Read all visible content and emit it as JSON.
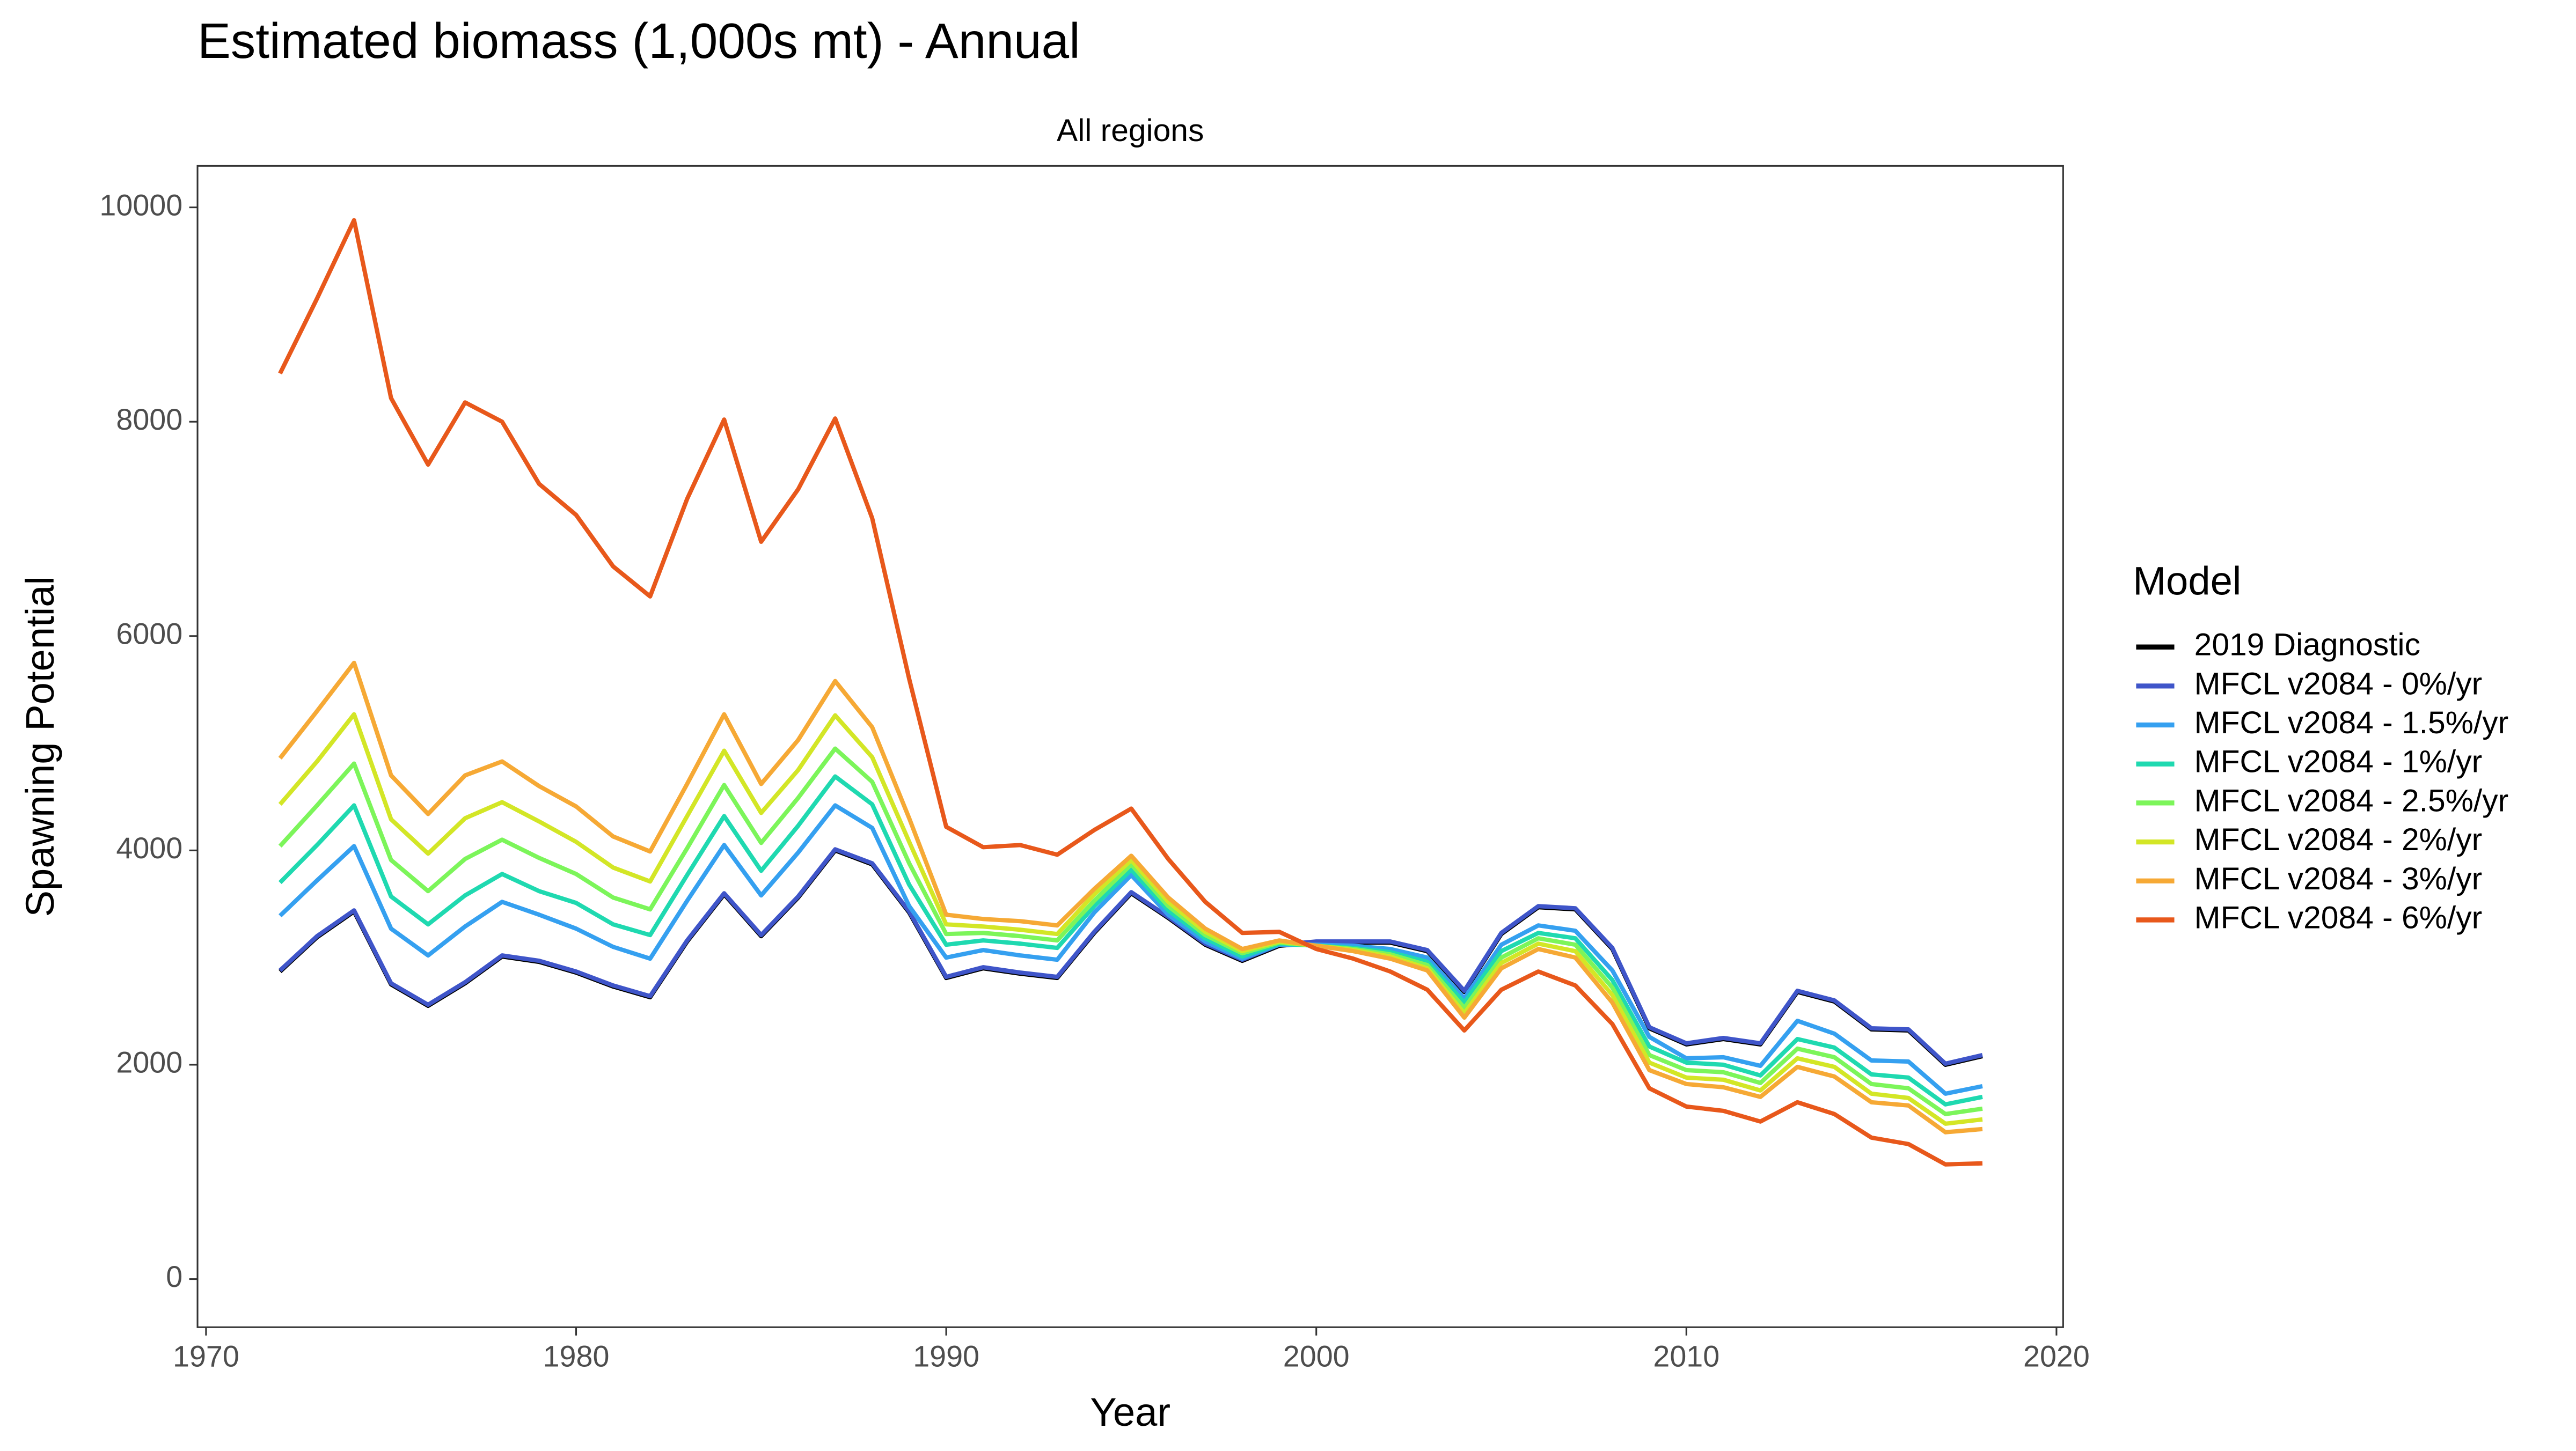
{
  "chart_data": {
    "type": "line",
    "title": "Estimated biomass (1,000s mt) - Annual",
    "subtitle": "All regions",
    "x_label": "Year",
    "y_label": "Spawning Potential",
    "legend_title": "Model",
    "legend": "right",
    "x": [
      1972,
      1973,
      1974,
      1975,
      1976,
      1977,
      1978,
      1979,
      1980,
      1981,
      1982,
      1983,
      1984,
      1985,
      1986,
      1987,
      1988,
      1989,
      1990,
      1991,
      1992,
      1993,
      1994,
      1995,
      1996,
      1997,
      1998,
      1999,
      2000,
      2001,
      2002,
      2003,
      2004,
      2005,
      2006,
      2007,
      2008,
      2009,
      2010,
      2011,
      2012,
      2013,
      2014,
      2015,
      2016,
      2017,
      2018
    ],
    "xlim": [
      1969.77,
      2020.18
    ],
    "xticks": [
      1970,
      1980,
      1990,
      2000,
      2010,
      2020
    ],
    "ylim": [
      -449,
      10387
    ],
    "yticks": [
      0,
      2000,
      4000,
      6000,
      8000,
      10000
    ],
    "series": [
      {
        "name": "2019 Diagnostic",
        "color": "#000000",
        "values": [
          2870,
          3190,
          3430,
          2750,
          2550,
          2760,
          3010,
          2960,
          2860,
          2730,
          2630,
          3150,
          3590,
          3200,
          3560,
          4000,
          3870,
          3420,
          2810,
          2900,
          2850,
          2810,
          3230,
          3600,
          3370,
          3120,
          2970,
          3110,
          3140,
          3140,
          3140,
          3060,
          2680,
          3220,
          3470,
          3450,
          3080,
          2340,
          2190,
          2240,
          2190,
          2680,
          2590,
          2330,
          2320,
          2000,
          2080
        ]
      },
      {
        "name": "MFCL v2084 - 0%/yr",
        "color": "#3f55c9",
        "values": [
          2880,
          3200,
          3440,
          2760,
          2560,
          2770,
          3020,
          2970,
          2870,
          2740,
          2640,
          3160,
          3600,
          3210,
          3570,
          4010,
          3880,
          3430,
          2820,
          2910,
          2860,
          2820,
          3240,
          3610,
          3380,
          3130,
          2980,
          3120,
          3150,
          3150,
          3150,
          3070,
          2690,
          3230,
          3480,
          3460,
          3090,
          2350,
          2200,
          2250,
          2200,
          2690,
          2600,
          2340,
          2330,
          2010,
          2090
        ]
      },
      {
        "name": "MFCL v2084 - 1.5%/yr",
        "color": "#35a0f0",
        "values": [
          3390,
          3720,
          4040,
          3270,
          3020,
          3290,
          3520,
          3400,
          3270,
          3100,
          2990,
          3530,
          4050,
          3580,
          3980,
          4420,
          4210,
          3480,
          3000,
          3070,
          3020,
          2980,
          3420,
          3770,
          3400,
          3150,
          2990,
          3120,
          3120,
          3110,
          3080,
          3000,
          2620,
          3120,
          3300,
          3250,
          2880,
          2260,
          2060,
          2070,
          1990,
          2410,
          2290,
          2040,
          2030,
          1730,
          1800
        ]
      },
      {
        "name": "MFCL v2084 - 1%/yr",
        "color": "#1fd9b0",
        "values": [
          3700,
          4050,
          4420,
          3570,
          3310,
          3580,
          3780,
          3620,
          3510,
          3310,
          3210,
          3770,
          4320,
          3810,
          4230,
          4690,
          4430,
          3680,
          3120,
          3160,
          3130,
          3090,
          3480,
          3820,
          3440,
          3180,
          3010,
          3130,
          3110,
          3090,
          3050,
          2960,
          2580,
          3060,
          3230,
          3180,
          2790,
          2170,
          2020,
          2000,
          1900,
          2240,
          2160,
          1910,
          1880,
          1630,
          1700
        ]
      },
      {
        "name": "MFCL v2084 - 2.5%/yr",
        "color": "#7cf55a",
        "values": [
          4040,
          4420,
          4810,
          3910,
          3620,
          3920,
          4100,
          3930,
          3780,
          3560,
          3450,
          4020,
          4610,
          4070,
          4490,
          4950,
          4640,
          3880,
          3220,
          3230,
          3200,
          3160,
          3530,
          3870,
          3480,
          3210,
          3040,
          3140,
          3110,
          3080,
          3030,
          2930,
          2530,
          3000,
          3180,
          3120,
          2720,
          2090,
          1950,
          1930,
          1830,
          2150,
          2070,
          1820,
          1780,
          1540,
          1590
        ]
      },
      {
        "name": "MFCL v2084 - 2%/yr",
        "color": "#d3e626",
        "values": [
          4430,
          4830,
          5270,
          4290,
          3970,
          4300,
          4450,
          4270,
          4080,
          3840,
          3710,
          4320,
          4930,
          4350,
          4750,
          5260,
          4870,
          4080,
          3310,
          3290,
          3260,
          3220,
          3590,
          3910,
          3520,
          3240,
          3060,
          3150,
          3110,
          3070,
          3010,
          2900,
          2480,
          2950,
          3130,
          3060,
          2650,
          2020,
          1880,
          1860,
          1760,
          2060,
          1980,
          1730,
          1690,
          1450,
          1490
        ]
      },
      {
        "name": "MFCL v2084 - 3%/yr",
        "color": "#f6a935",
        "values": [
          4860,
          5300,
          5750,
          4700,
          4340,
          4700,
          4830,
          4600,
          4410,
          4130,
          3990,
          4620,
          5270,
          4620,
          5030,
          5580,
          5150,
          4300,
          3400,
          3360,
          3340,
          3300,
          3640,
          3950,
          3560,
          3270,
          3080,
          3160,
          3110,
          3060,
          2990,
          2880,
          2440,
          2900,
          3080,
          3000,
          2580,
          1950,
          1820,
          1790,
          1700,
          1980,
          1890,
          1650,
          1620,
          1370,
          1400
        ]
      },
      {
        "name": "MFCL v2084 - 6%/yr",
        "color": "#e8581b",
        "values": [
          8450,
          9150,
          9880,
          8220,
          7600,
          8180,
          8000,
          7420,
          7130,
          6650,
          6370,
          7280,
          8020,
          6880,
          7370,
          8030,
          7100,
          5600,
          4220,
          4030,
          4050,
          3960,
          4190,
          4390,
          3920,
          3520,
          3230,
          3240,
          3080,
          2990,
          2870,
          2700,
          2320,
          2700,
          2870,
          2740,
          2380,
          1780,
          1610,
          1570,
          1470,
          1650,
          1540,
          1320,
          1260,
          1070,
          1080
        ]
      }
    ]
  }
}
